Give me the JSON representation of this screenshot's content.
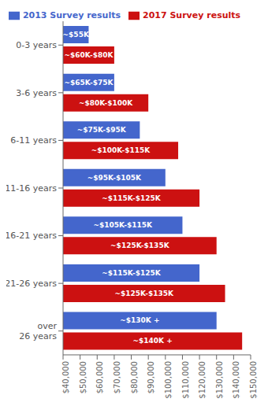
{
  "chart_data": {
    "type": "bar",
    "orientation": "horizontal",
    "categories": [
      "0-3 years",
      "3-6 years",
      "6-11 years",
      "11-16 years",
      "16-21 years",
      "21-26 years",
      "over\n26 years"
    ],
    "series": [
      {
        "name": "2013 Survey results",
        "color": "#4466cc",
        "values": [
          55000,
          70000,
          85000,
          100000,
          110000,
          120000,
          130000
        ],
        "value_labels": [
          "~$55K",
          "~$65K-$75K",
          "~$75K-$95K",
          "~$95K-$105K",
          "~$105K-$115K",
          "~$115K-$125K",
          "~$130K +"
        ]
      },
      {
        "name": "2017 Survey results",
        "color": "#cc1111",
        "values": [
          70000,
          90000,
          107500,
          120000,
          130000,
          135000,
          145000
        ],
        "value_labels": [
          "~$60K-$80K",
          "~$80K-$100K",
          "~$100K-$115K",
          "~$115K-$125K",
          "~$125K-$135K",
          "~$125K-$135K",
          "~$140K +"
        ]
      }
    ],
    "xlim": [
      40000,
      150000
    ],
    "xticks": [
      {
        "value": 40000,
        "label": "$40,000"
      },
      {
        "value": 50000,
        "label": "$50,000"
      },
      {
        "value": 60000,
        "label": "$60,000"
      },
      {
        "value": 70000,
        "label": "$70,000"
      },
      {
        "value": 80000,
        "label": "$80,000"
      },
      {
        "value": 90000,
        "label": "$90,000"
      },
      {
        "value": 100000,
        "label": "$100,000"
      },
      {
        "value": 110000,
        "label": "$110,000"
      },
      {
        "value": 120000,
        "label": "$120,000"
      },
      {
        "value": 130000,
        "label": "$130,000"
      },
      {
        "value": 140000,
        "label": "$140,000"
      },
      {
        "value": 150000,
        "label": "$150,000"
      }
    ],
    "data_labels": true,
    "legend": "top",
    "grid": false
  }
}
